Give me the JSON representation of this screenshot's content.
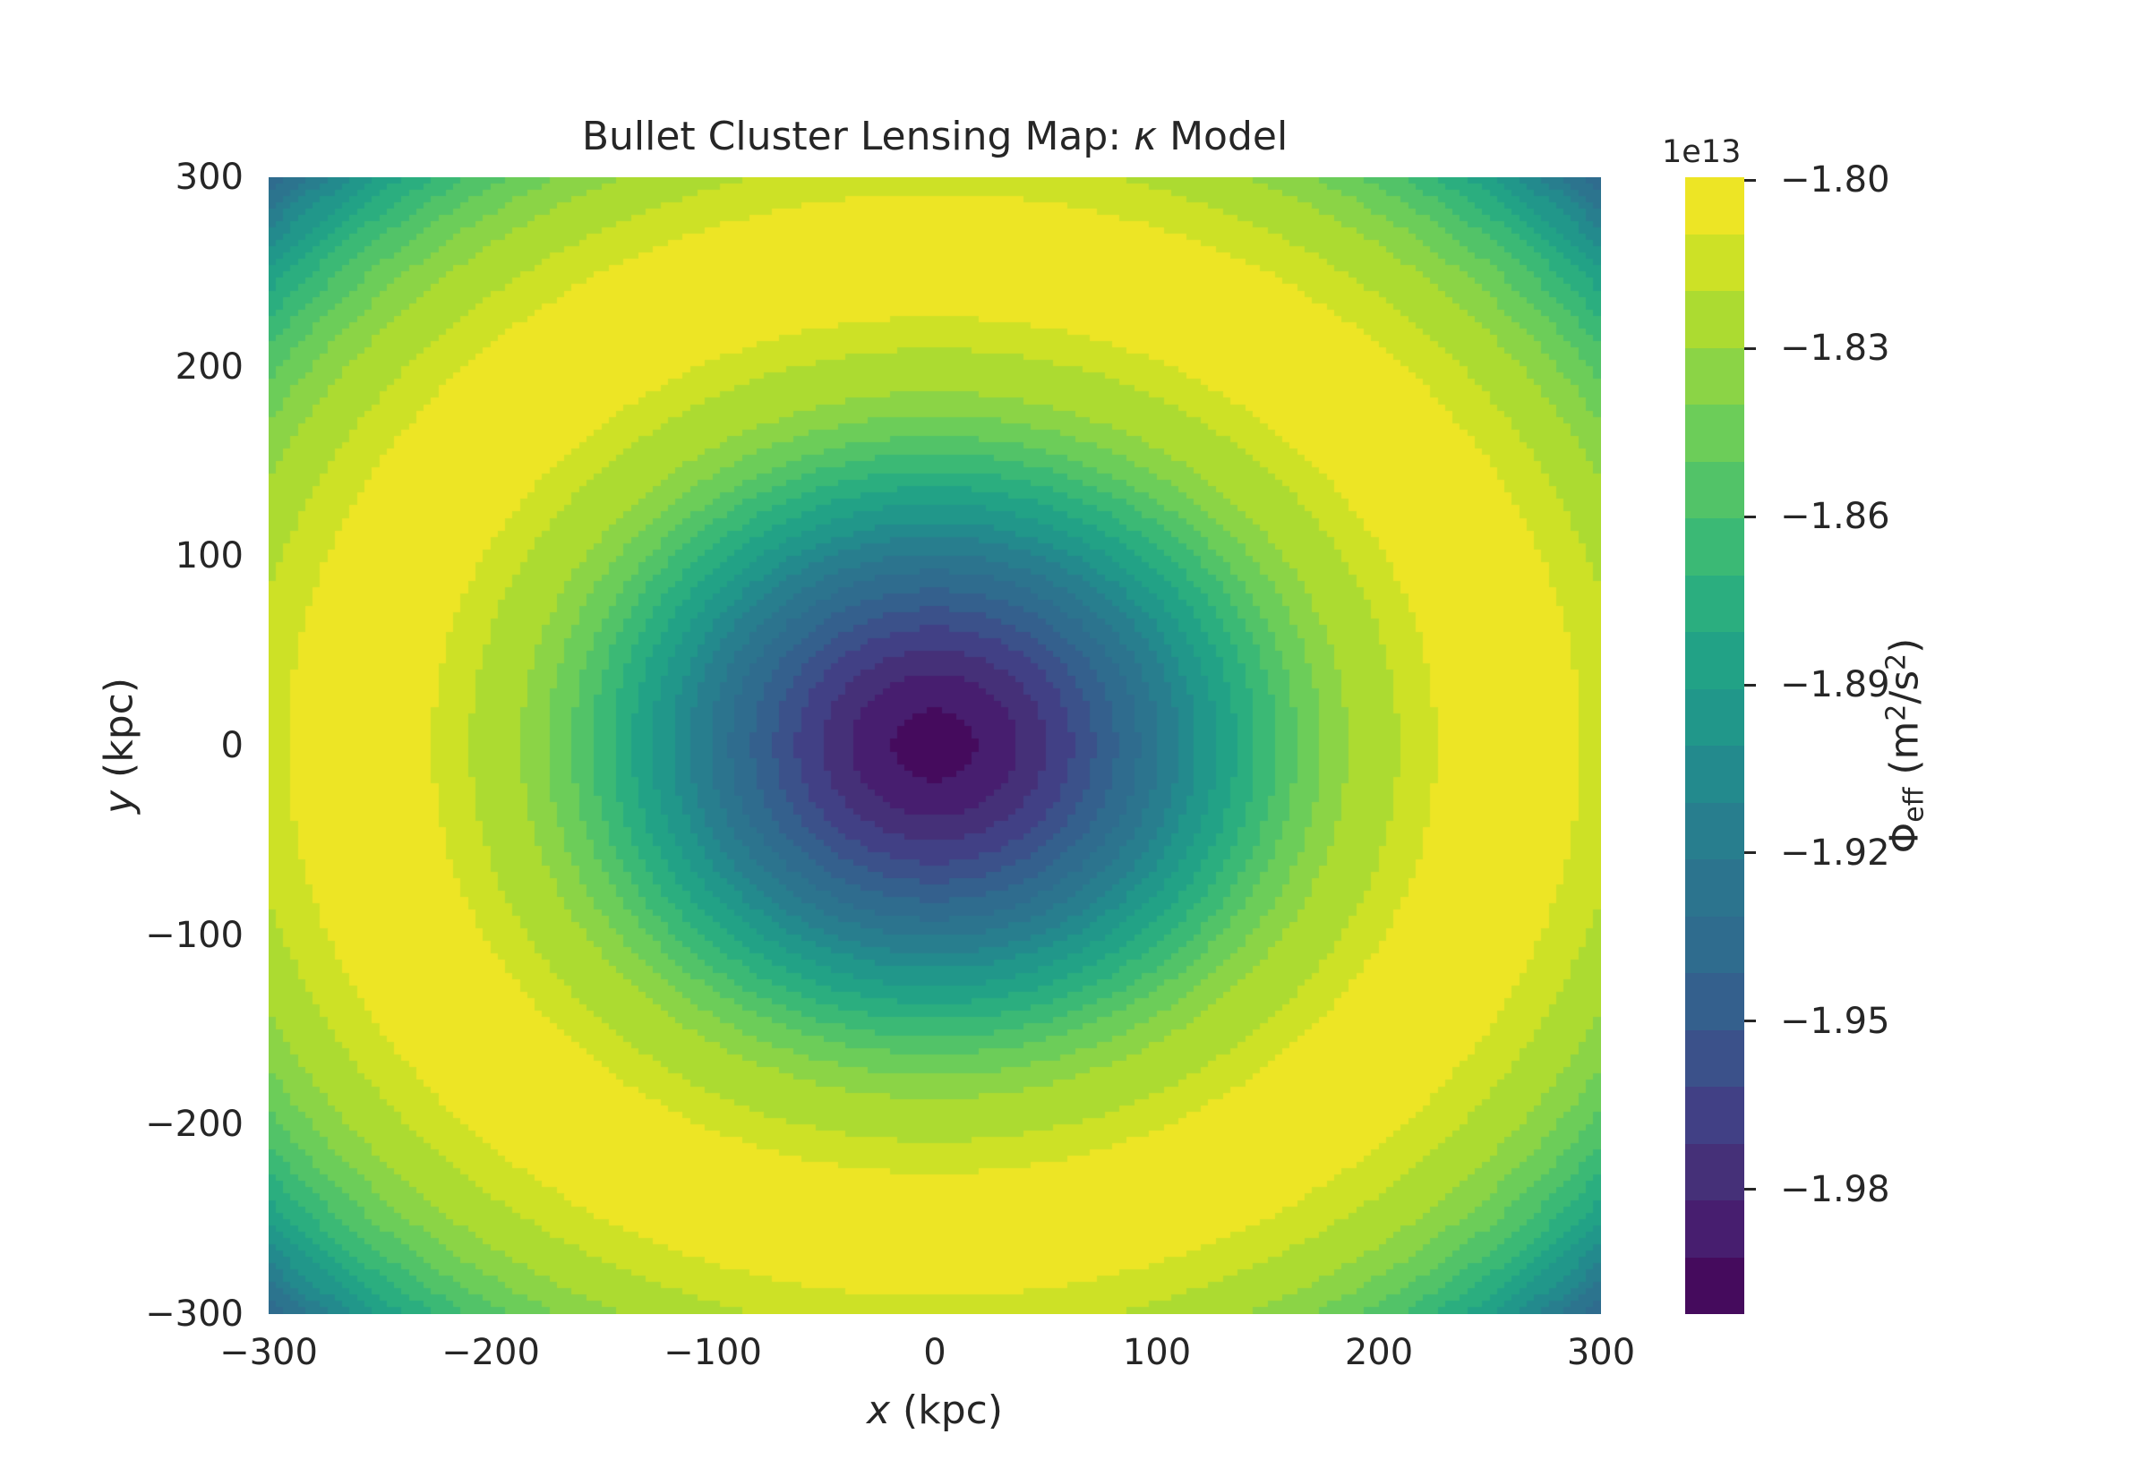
{
  "figure": {
    "bg": "#ffffff",
    "text_color": "#262626"
  },
  "title": {
    "text": "Bullet Cluster Lensing Map: κ Model",
    "parts": [
      {
        "t": "Bullet Cluster Lensing Map: "
      },
      {
        "t": "κ",
        "italic": true
      },
      {
        "t": " Model"
      }
    ]
  },
  "axes": {
    "xlabel_parts": [
      {
        "t": "x",
        "italic": true
      },
      {
        "t": " (kpc)"
      }
    ],
    "ylabel_parts": [
      {
        "t": "y",
        "italic": true
      },
      {
        "t": " (kpc)"
      }
    ],
    "x_ticks": [
      {
        "v": -300,
        "label": "−300"
      },
      {
        "v": -200,
        "label": "−200"
      },
      {
        "v": -100,
        "label": "−100"
      },
      {
        "v": 0,
        "label": "0"
      },
      {
        "v": 100,
        "label": "100"
      },
      {
        "v": 200,
        "label": "200"
      },
      {
        "v": 300,
        "label": "300"
      }
    ],
    "y_ticks": [
      {
        "v": 300,
        "label": "300"
      },
      {
        "v": 200,
        "label": "200"
      },
      {
        "v": 100,
        "label": "100"
      },
      {
        "v": 0,
        "label": "0"
      },
      {
        "v": -100,
        "label": "−100"
      },
      {
        "v": -200,
        "label": "−200"
      },
      {
        "v": -300,
        "label": "−300"
      }
    ],
    "xlim": [
      -300,
      300
    ],
    "ylim": [
      -300,
      300
    ]
  },
  "colorbar": {
    "offset_label": "1e13",
    "label_parts": [
      {
        "t": "Φ"
      },
      {
        "t": "eff",
        "sub": true
      },
      {
        "t": " (m"
      },
      {
        "t": "2",
        "sup": true
      },
      {
        "t": "/s"
      },
      {
        "t": "2",
        "sup": true
      },
      {
        "t": ")"
      }
    ],
    "ticks": [
      {
        "v": -1.8,
        "label": "−1.80"
      },
      {
        "v": -1.83,
        "label": "−1.83"
      },
      {
        "v": -1.86,
        "label": "−1.86"
      },
      {
        "v": -1.89,
        "label": "−1.89"
      },
      {
        "v": -1.92,
        "label": "−1.92"
      },
      {
        "v": -1.95,
        "label": "−1.95"
      },
      {
        "v": -1.98,
        "label": "−1.98"
      }
    ],
    "vmax": -1.7995,
    "vmin": -2.0022,
    "n_levels": 20
  },
  "chart_data": {
    "type": "filled_contour",
    "title": "Bullet Cluster Lensing Map: κ Model",
    "xlabel": "x (kpc)",
    "ylabel": "y (kpc)",
    "xlim": [
      -300,
      300
    ],
    "ylim": [
      -300,
      300
    ],
    "x_tick_values": [
      -300,
      -200,
      -100,
      0,
      100,
      200,
      300
    ],
    "y_tick_values": [
      -300,
      -200,
      -100,
      0,
      100,
      200,
      300
    ],
    "grid": false,
    "legend": "colorbar-right",
    "colormap": "viridis",
    "n_levels": 20,
    "level_step_1e13": 0.0101,
    "value_unit": "1e13 m²/s²",
    "colorbar_tick_values_1e13": [
      -1.8,
      -1.83,
      -1.86,
      -1.89,
      -1.92,
      -1.95,
      -1.98
    ],
    "field_range_1e13": [
      -2.0022,
      -1.7995
    ],
    "well_center_kpc": [
      0,
      0
    ],
    "field_minimum_1e13": -2.0,
    "field_maximum_1e13": -1.7995,
    "maximum_ring_radius_kpc": 258,
    "corner_value_1e13": -1.943,
    "palette": [
      "#450b5d",
      "#471e6f",
      "#453078",
      "#414085",
      "#3b518a",
      "#34608d",
      "#2f6c8e",
      "#2c748e",
      "#287e8e",
      "#238a8d",
      "#21978a",
      "#22a286",
      "#2bae7f",
      "#3bb975",
      "#52c368",
      "#6ccd59",
      "#8bd446",
      "#acdb31",
      "#cde126",
      "#ede525"
    ],
    "radial_profile": {
      "r_unit": "kpc",
      "u_unit": "contour-level-index (0 = −2.0022e13, 20 = −1.7995e13)",
      "anchors": [
        [
          0,
          0.25
        ],
        [
          18.6,
          1
        ],
        [
          37,
          2
        ],
        [
          50,
          3
        ],
        [
          62,
          4
        ],
        [
          72,
          5
        ],
        [
          82,
          6
        ],
        [
          92,
          7
        ],
        [
          101,
          8
        ],
        [
          110,
          9
        ],
        [
          118,
          10
        ],
        [
          127,
          11
        ],
        [
          136,
          12
        ],
        [
          145,
          13
        ],
        [
          154,
          14
        ],
        [
          163,
          15
        ],
        [
          174,
          16
        ],
        [
          186,
          17
        ],
        [
          209,
          18
        ],
        [
          226,
          19
        ],
        [
          258,
          20.3
        ],
        [
          291,
          19
        ],
        [
          305,
          18.2
        ],
        [
          326,
          17.4
        ],
        [
          342,
          16.2
        ],
        [
          354,
          15.2
        ],
        [
          365,
          14.1
        ],
        [
          376,
          12.9
        ],
        [
          386,
          11.7
        ],
        [
          394,
          10.6
        ],
        [
          403,
          9.4
        ],
        [
          412,
          8.0
        ],
        [
          425,
          5.8
        ],
        [
          450,
          2.0
        ]
      ]
    }
  },
  "render": {
    "grid_n": 180
  }
}
